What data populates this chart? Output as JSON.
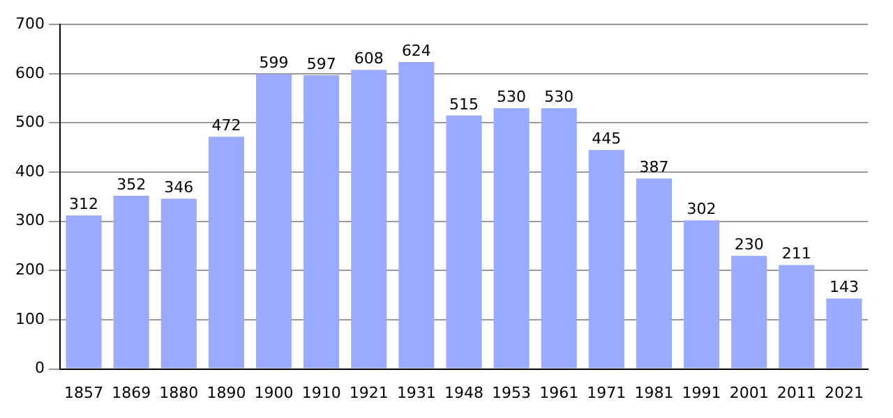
{
  "chart_data": {
    "type": "bar",
    "categories": [
      "1857",
      "1869",
      "1880",
      "1890",
      "1900",
      "1910",
      "1921",
      "1931",
      "1948",
      "1953",
      "1961",
      "1971",
      "1981",
      "1991",
      "2001",
      "2011",
      "2021"
    ],
    "values": [
      312,
      352,
      346,
      472,
      599,
      597,
      608,
      624,
      515,
      530,
      530,
      445,
      387,
      302,
      230,
      211,
      143
    ],
    "color": "#99aaff",
    "ylim": [
      0,
      700
    ],
    "yticks": [
      0,
      100,
      200,
      300,
      400,
      500,
      600,
      700
    ],
    "grid": "y",
    "data_labels": true,
    "legend": false
  }
}
